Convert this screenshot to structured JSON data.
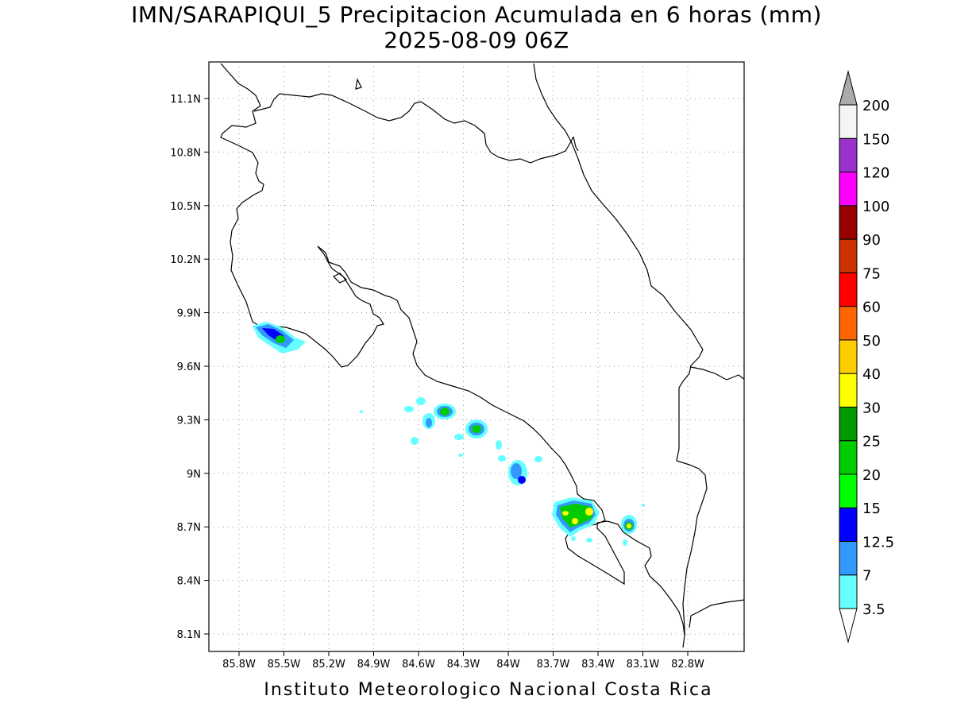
{
  "title": {
    "line1": "IMN/SARAPIQUI_5 Precipitacion Acumulada en 6 horas (mm)",
    "line2": "2025-08-09 06Z"
  },
  "footer": "Instituto Meteorologico Nacional Costa Rica",
  "map": {
    "lon_range": [
      -86.0,
      -82.5
    ],
    "lat_range": [
      8.0,
      11.3
    ],
    "x_ticks": [
      {
        "value": -85.8,
        "label": "85.8W"
      },
      {
        "value": -85.5,
        "label": "85.5W"
      },
      {
        "value": -85.2,
        "label": "85.2W"
      },
      {
        "value": -84.9,
        "label": "84.9W"
      },
      {
        "value": -84.6,
        "label": "84.6W"
      },
      {
        "value": -84.3,
        "label": "84.3W"
      },
      {
        "value": -84.0,
        "label": "84W"
      },
      {
        "value": -83.7,
        "label": "83.7W"
      },
      {
        "value": -83.4,
        "label": "83.4W"
      },
      {
        "value": -83.1,
        "label": "83.1W"
      },
      {
        "value": -82.8,
        "label": "82.8W"
      }
    ],
    "y_ticks": [
      {
        "value": 11.1,
        "label": "11.1N"
      },
      {
        "value": 10.8,
        "label": "10.8N"
      },
      {
        "value": 10.5,
        "label": "10.5N"
      },
      {
        "value": 10.2,
        "label": "10.2N"
      },
      {
        "value": 9.9,
        "label": "9.9N"
      },
      {
        "value": 9.6,
        "label": "9.6N"
      },
      {
        "value": 9.3,
        "label": "9.3N"
      },
      {
        "value": 9.0,
        "label": "9N"
      },
      {
        "value": 8.7,
        "label": "8.7N"
      },
      {
        "value": 8.4,
        "label": "8.4N"
      },
      {
        "value": 8.1,
        "label": "8.1N"
      }
    ],
    "grid": true,
    "grid_style": "dotted"
  },
  "colorbar": {
    "labels": [
      "3.5",
      "7",
      "12.5",
      "15",
      "20",
      "25",
      "30",
      "40",
      "50",
      "60",
      "75",
      "90",
      "100",
      "120",
      "150",
      "200"
    ],
    "colors": [
      "#ffffff",
      "#66ffff",
      "#3399ff",
      "#0000ff",
      "#00ff00",
      "#00cc00",
      "#009900",
      "#ffff00",
      "#ffcc00",
      "#ff6600",
      "#ff0000",
      "#cc3300",
      "#990000",
      "#ff00ff",
      "#9933cc",
      "#f5f5f5",
      "#aaaaaa"
    ],
    "min_arrow_color": "#ffffff",
    "max_arrow_color": "#aaaaaa"
  }
}
